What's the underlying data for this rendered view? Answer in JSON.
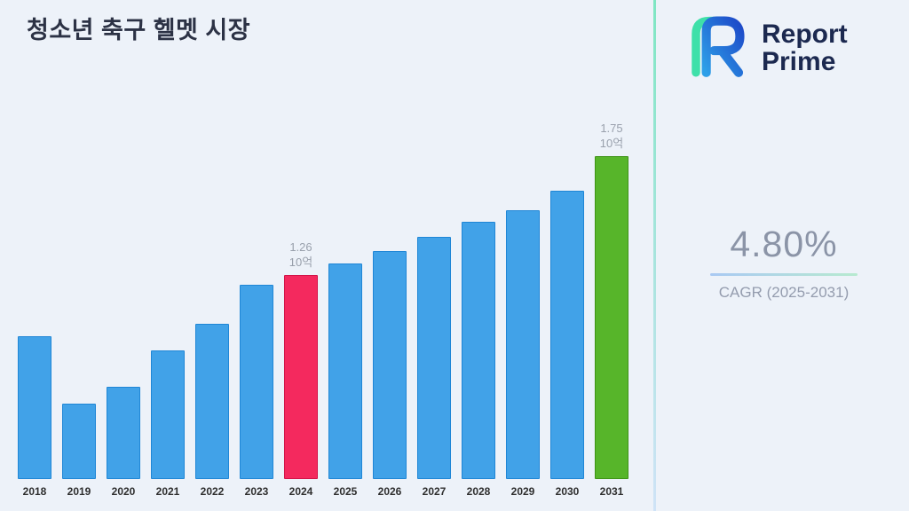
{
  "page": {
    "background": "#edf2f9"
  },
  "header": {
    "title": "청소년 축구 헬멧 시장"
  },
  "logo": {
    "line1": "Report",
    "line2": "Prime"
  },
  "stats": {
    "cagr_value": "4.80%",
    "cagr_label": "CAGR (2025-2031)"
  },
  "divider": {
    "top_color": "#7fe6c3",
    "bottom_color": "#cfe3f7"
  },
  "underline": {
    "left_color": "#a9c9f3",
    "right_color": "#b7ead0"
  },
  "chart_data": {
    "type": "bar",
    "title": "청소년 축구 헬멧 시장",
    "categories": [
      "2018",
      "2019",
      "2020",
      "2021",
      "2022",
      "2023",
      "2024",
      "2025",
      "2026",
      "2027",
      "2028",
      "2029",
      "2030",
      "2031"
    ],
    "values": [
      1.01,
      0.73,
      0.8,
      0.95,
      1.06,
      1.22,
      1.26,
      1.31,
      1.36,
      1.42,
      1.48,
      1.53,
      1.61,
      1.75
    ],
    "unit": "10억",
    "xlabel": "",
    "ylabel": "",
    "ylim": [
      0.42,
      1.92
    ],
    "grid": false,
    "legend": false,
    "annotations": [
      {
        "category": "2024",
        "lines": [
          "1.26",
          "10억"
        ]
      },
      {
        "category": "2031",
        "lines": [
          "1.75",
          "10억"
        ]
      }
    ],
    "bar_colors": {
      "default": {
        "fill": "#41a2e8",
        "border": "#1f86d6"
      },
      "2024": {
        "fill": "#f4295e",
        "border": "#d11348"
      },
      "2031": {
        "fill": "#57b52a",
        "border": "#3f9317"
      }
    }
  }
}
